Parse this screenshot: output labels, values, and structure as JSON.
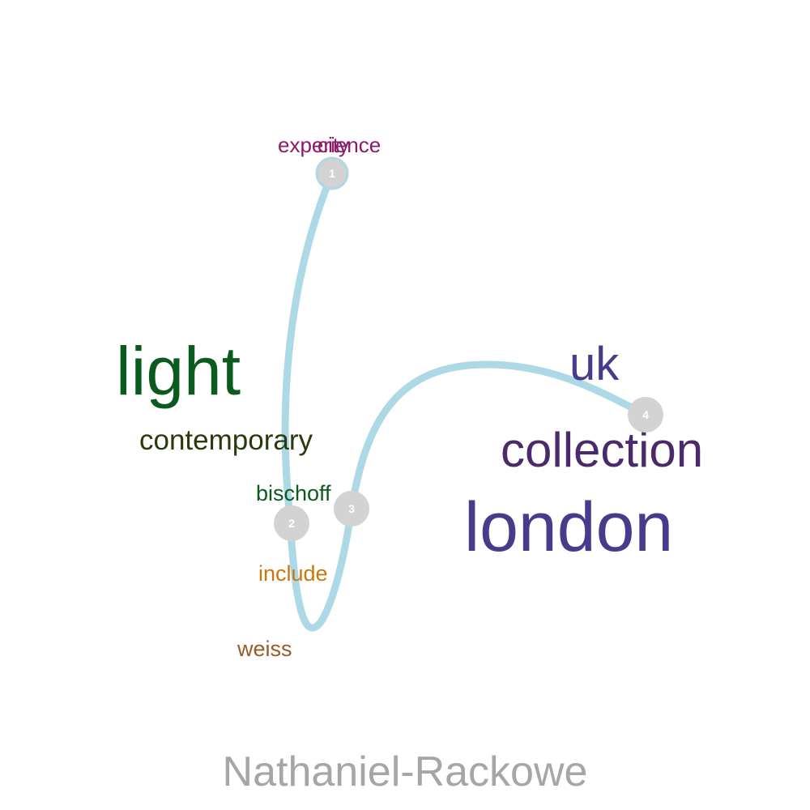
{
  "title": "Nathaniel-Rackowe",
  "path_color": "#add8e6",
  "node_color": "#d3d3d3",
  "nodes": [
    {
      "id": "node-1",
      "label": "1"
    },
    {
      "id": "node-2",
      "label": "2"
    },
    {
      "id": "node-3",
      "label": "3"
    },
    {
      "id": "node-4",
      "label": "4"
    }
  ],
  "words": [
    {
      "key": "experience",
      "text": "experience",
      "color": "#8b1a6b"
    },
    {
      "key": "city",
      "text": "city",
      "color": "#8b1a6b"
    },
    {
      "key": "light",
      "text": "light",
      "color": "#0b5a1e"
    },
    {
      "key": "contemporary",
      "text": "contemporary",
      "color": "#2a3a0a"
    },
    {
      "key": "bischoff",
      "text": "bischoff",
      "color": "#0b5a1e"
    },
    {
      "key": "include",
      "text": "include",
      "color": "#c8780a"
    },
    {
      "key": "weiss",
      "text": "weiss",
      "color": "#9a5a28"
    },
    {
      "key": "uk",
      "text": "uk",
      "color": "#473c8b"
    },
    {
      "key": "collection",
      "text": "collection",
      "color": "#4a2a6a"
    },
    {
      "key": "london",
      "text": "london",
      "color": "#473c8b"
    }
  ]
}
